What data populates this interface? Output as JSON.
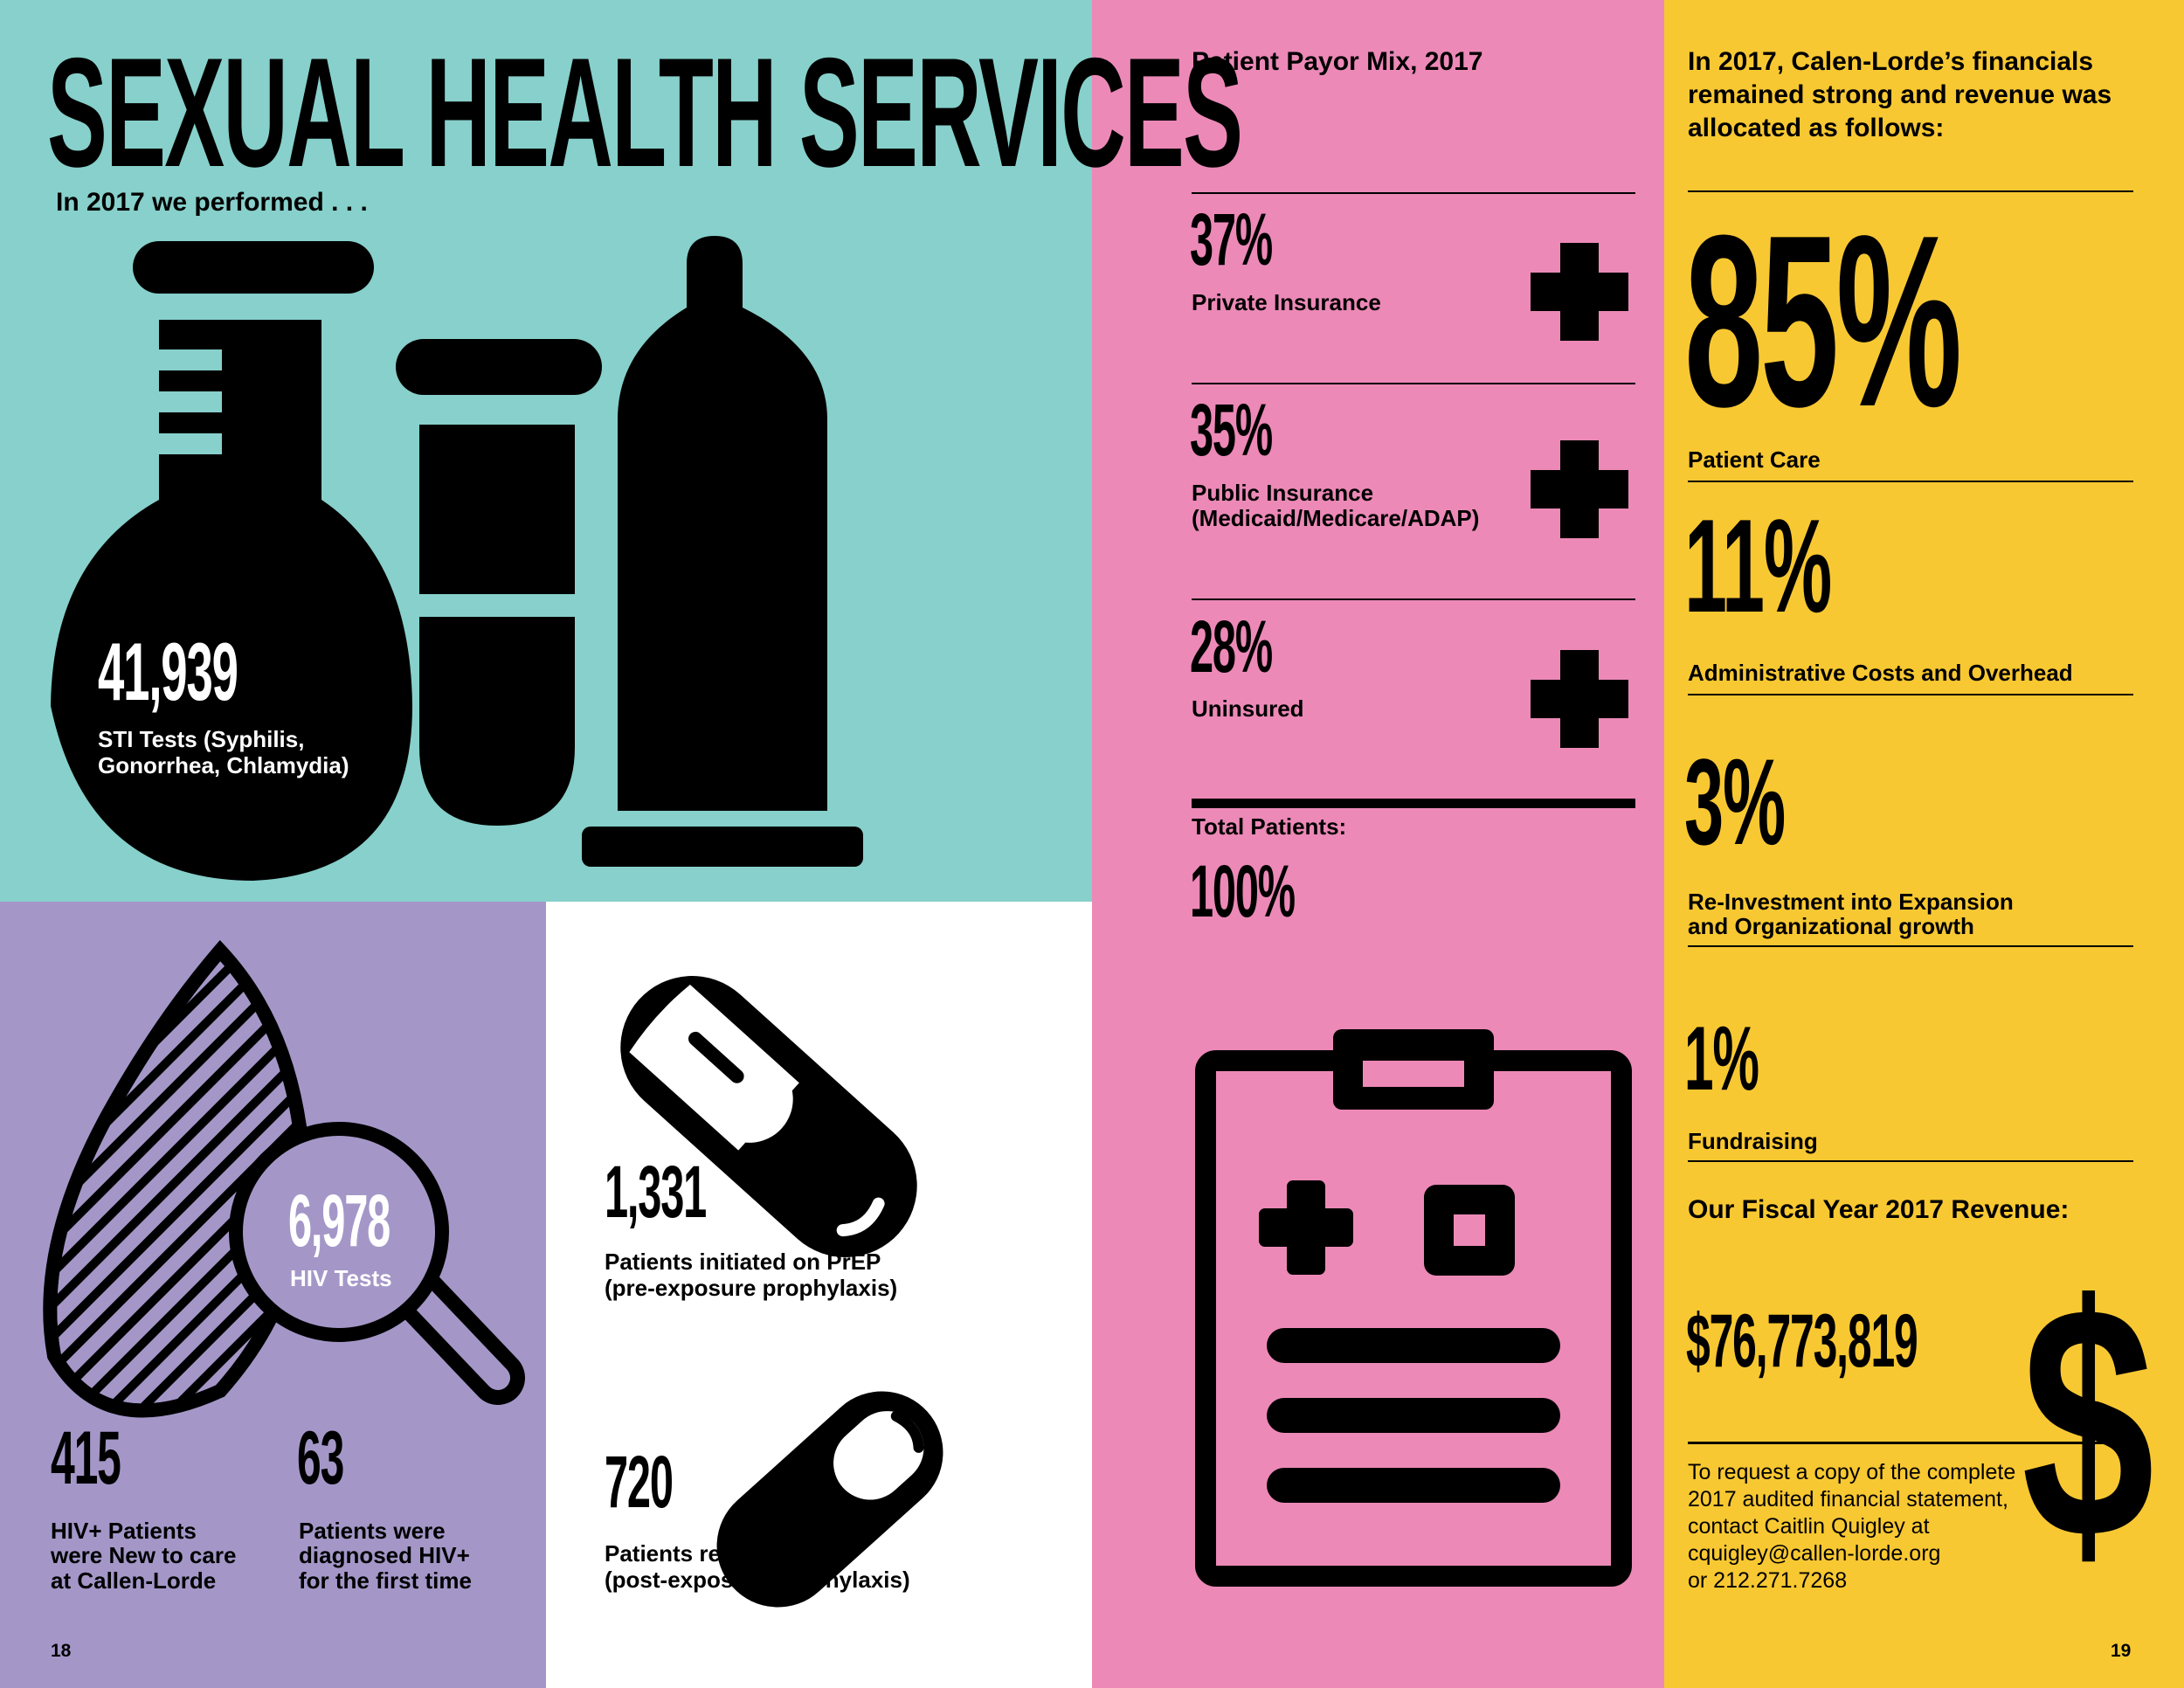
{
  "left_page": {
    "title": "SEXUAL HEALTH SERVICES",
    "subtitle": "In 2017 we performed . . .",
    "sti": {
      "value": "41,939",
      "label_line1": "STI Tests (Syphilis,",
      "label_line2": "Gonorrhea, Chlamydia)"
    },
    "hiv_tests": {
      "value": "6,978",
      "label": "HIV Tests"
    },
    "new_patients": {
      "value": "415",
      "line1": "HIV+ Patients",
      "line2": "were New to care",
      "line3": "at Callen-Lorde"
    },
    "diagnosed": {
      "value": "63",
      "line1": "Patients were",
      "line2": "diagnosed HIV+",
      "line3": "for the first time"
    },
    "prep": {
      "value": "1,331",
      "line1": "Patients initiated on PrEP",
      "line2": "(pre-exposure prophylaxis)"
    },
    "pep": {
      "value": "720",
      "line1": "Patients received PEP",
      "line2": "(post-exposure prophylaxis)"
    },
    "page_number": "18"
  },
  "payor_mix": {
    "heading": "Patient Payor Mix, 2017",
    "items": [
      {
        "percent": "37%",
        "label_line1": "Private Insurance",
        "label_line2": ""
      },
      {
        "percent": "35%",
        "label_line1": "Public Insurance",
        "label_line2": "(Medicaid/Medicare/ADAP)"
      },
      {
        "percent": "28%",
        "label_line1": "Uninsured",
        "label_line2": ""
      }
    ],
    "total_label": "Total Patients:",
    "total_value": "100%"
  },
  "financials": {
    "heading_line1": "In 2017, Calen-Lorde’s financials",
    "heading_line2": "remained strong and revenue was",
    "heading_line3": "allocated as follows:",
    "items": [
      {
        "percent": "85%",
        "label_line1": "Patient Care",
        "label_line2": ""
      },
      {
        "percent": "11%",
        "label_line1": "Administrative Costs and Overhead",
        "label_line2": ""
      },
      {
        "percent": "3%",
        "label_line1": "Re-Investment into Expansion",
        "label_line2": "and Organizational growth"
      },
      {
        "percent": "1%",
        "label_line1": "Fundraising",
        "label_line2": ""
      }
    ],
    "revenue_heading": "Our Fiscal Year 2017 Revenue:",
    "revenue_value": "$76,773,819",
    "dollar_sign": "$",
    "contact_line1": "To request a copy of the complete",
    "contact_line2": "2017 audited financial statement,",
    "contact_line3": "contact Caitlin Quigley at",
    "contact_line4": "cquigley@callen-lorde.org",
    "contact_line5": "or 212.271.7268",
    "page_number": "19"
  },
  "colors": {
    "teal": "#87d0cb",
    "purple": "#a497c8",
    "pink": "#ec89b7",
    "yellow": "#f8c832",
    "white": "#ffffff",
    "black": "#000000"
  },
  "icons": [
    "flask-icon",
    "test-tube-icon",
    "condom-icon",
    "blood-drop-icon",
    "magnifier-icon",
    "pill-icon",
    "medical-cross-icon",
    "clipboard-icon"
  ]
}
